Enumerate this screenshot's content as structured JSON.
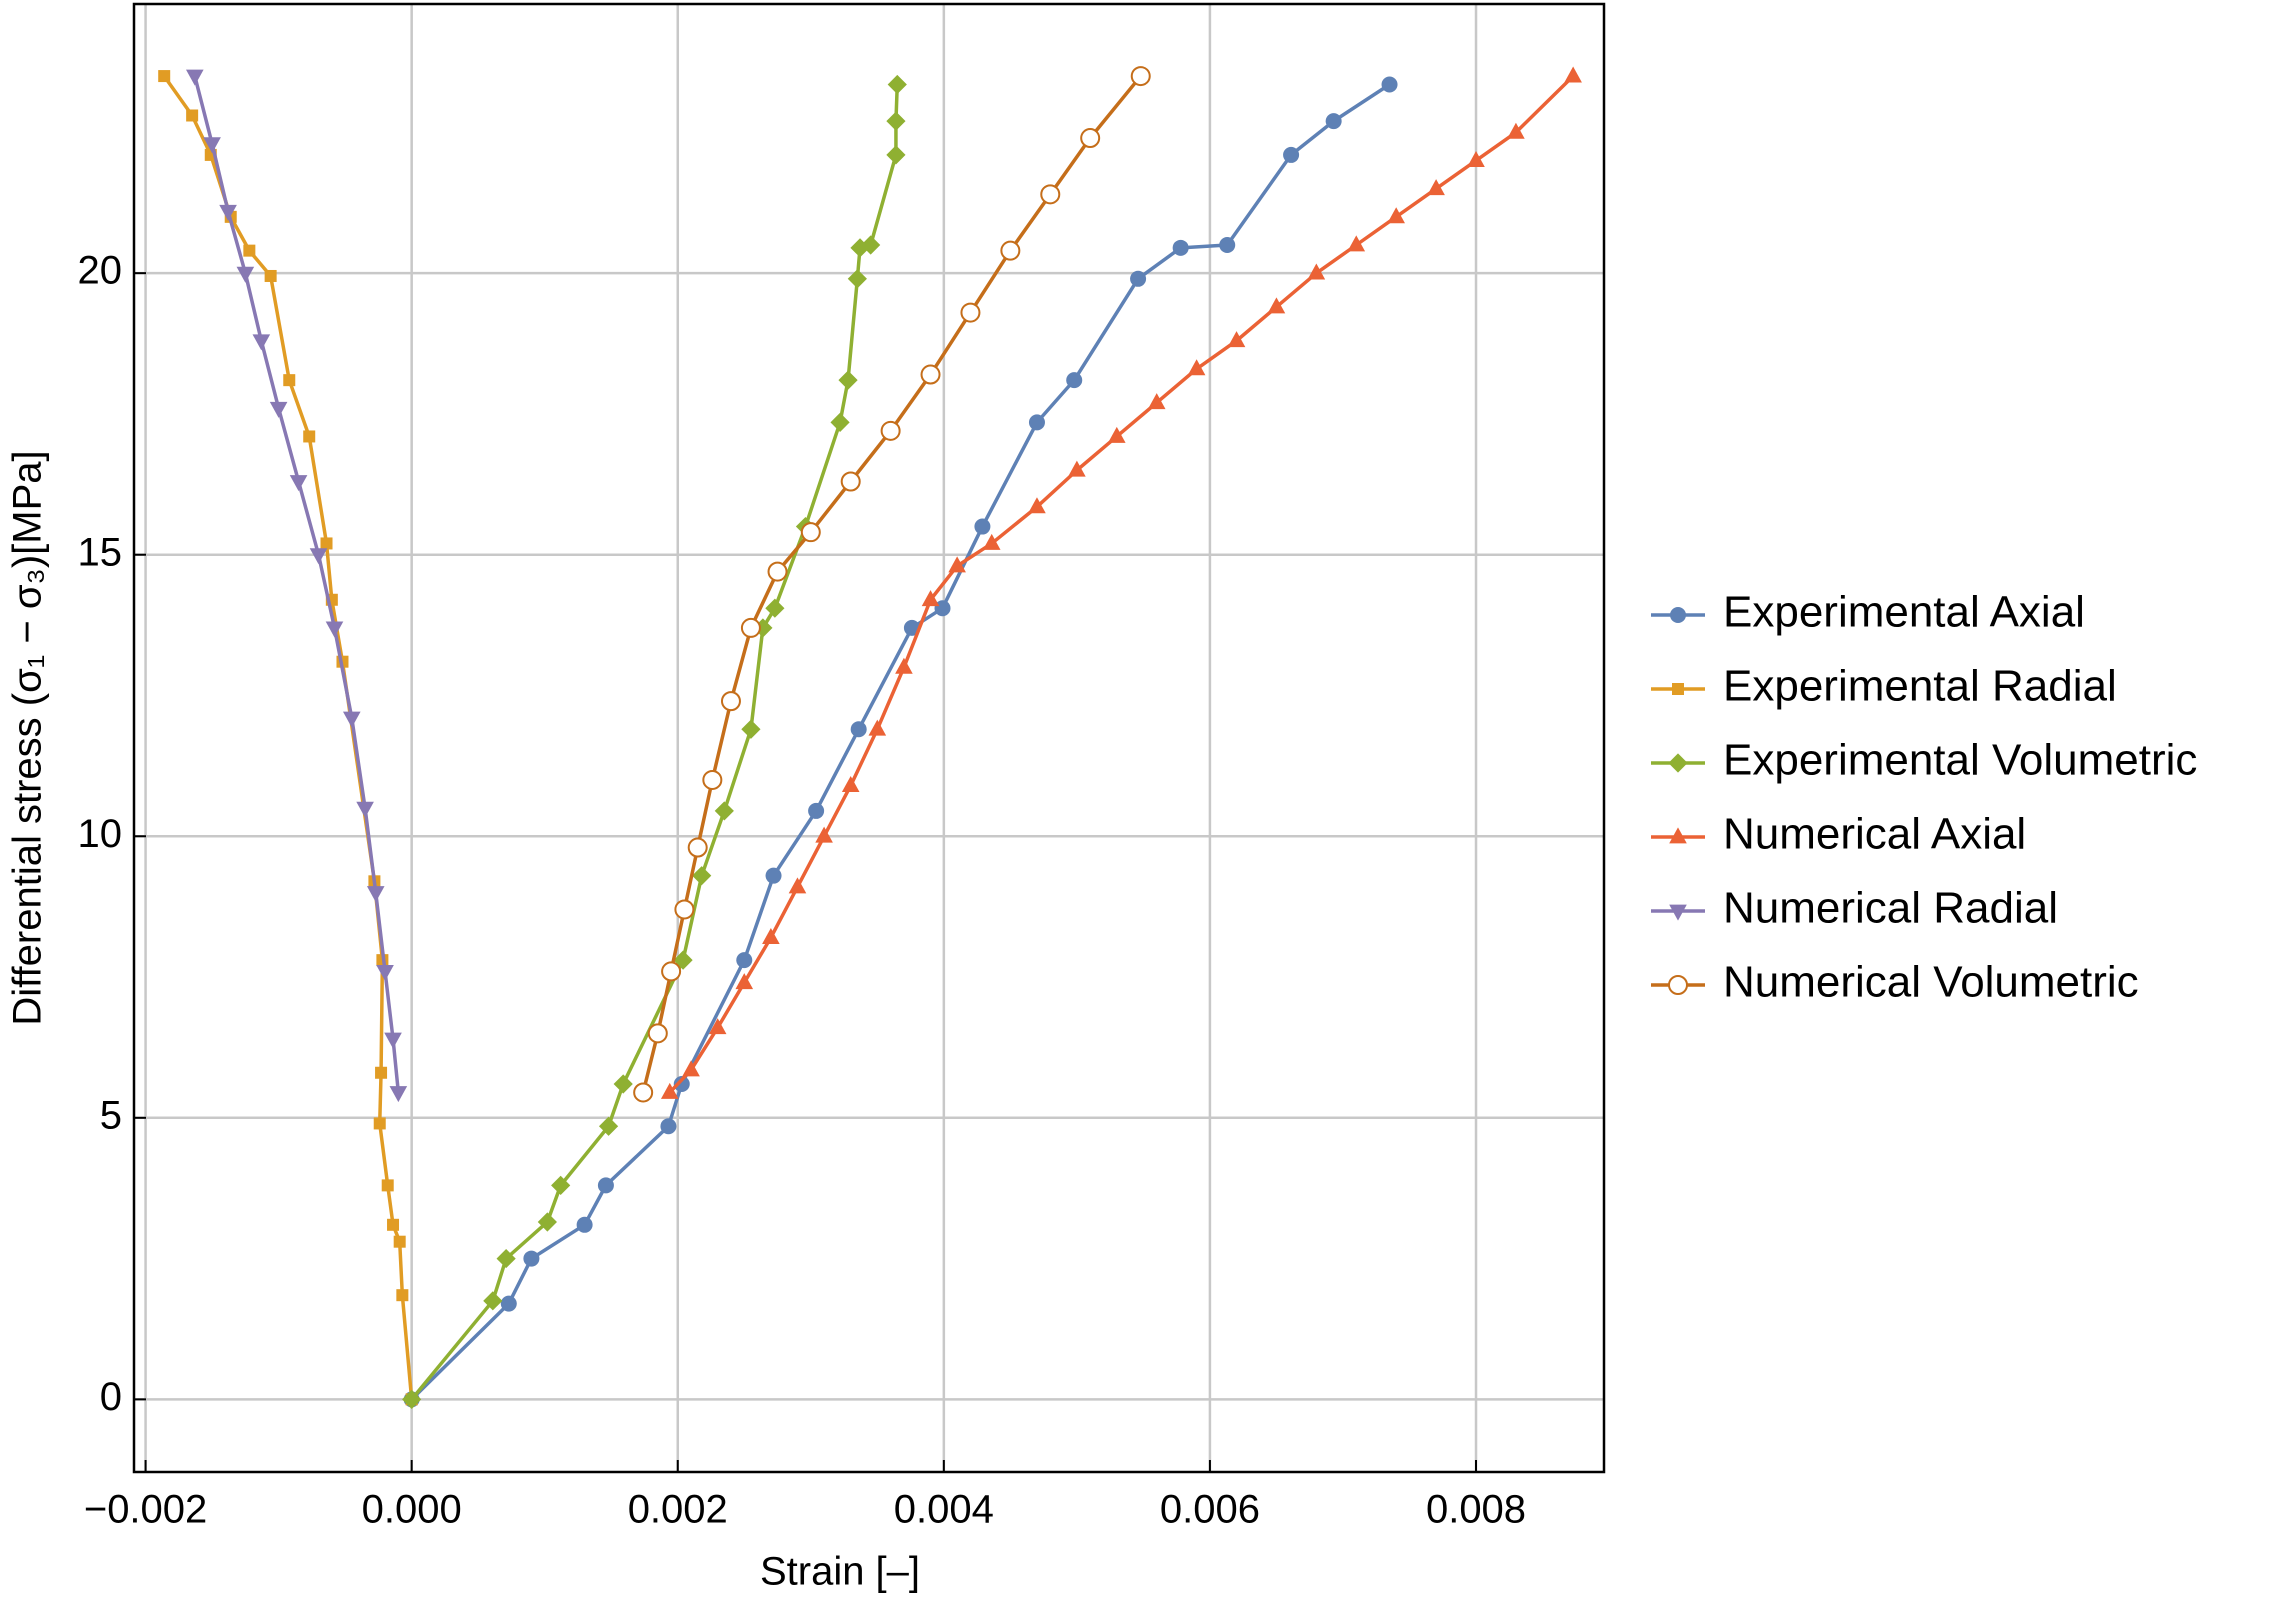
{
  "chart_data": {
    "type": "line",
    "x_label": "Strain [–]",
    "y_label": "Differential stress (σ₁ − σ₃)[MPa]",
    "xlim": [
      -0.002087,
      0.008962
    ],
    "ylim": [
      -1.29,
      24.78
    ],
    "xticks": [
      {
        "value": -0.002,
        "label": "−0.002"
      },
      {
        "value": 0,
        "label": "0.000"
      },
      {
        "value": 0.002,
        "label": "0.002"
      },
      {
        "value": 0.004,
        "label": "0.004"
      },
      {
        "value": 0.006,
        "label": "0.006"
      },
      {
        "value": 0.008,
        "label": "0.008"
      }
    ],
    "yticks": [
      0,
      5,
      10,
      15,
      20
    ],
    "grid": true,
    "legend": "right",
    "series": [
      {
        "name": "Experimental Axial",
        "color": "#5e81b5",
        "marker": "circle",
        "x": [
          0,
          0.00073,
          0.0009,
          0.0013,
          0.00146,
          0.00193,
          0.00203,
          0.0025,
          0.00272,
          0.00304,
          0.00336,
          0.00376,
          0.00399,
          0.00429,
          0.0047,
          0.00498,
          0.00546,
          0.00578,
          0.00613,
          0.00661,
          0.00693,
          0.00735
        ],
        "values": [
          0,
          1.7,
          2.5,
          3.1,
          3.8,
          4.85,
          5.6,
          7.8,
          9.3,
          10.45,
          11.9,
          13.7,
          14.05,
          15.5,
          17.35,
          18.1,
          19.9,
          20.45,
          20.5,
          22.1,
          22.7,
          23.35
        ]
      },
      {
        "name": "Experimental Radial",
        "color": "#e19c24",
        "marker": "square",
        "x": [
          -0.00186,
          -0.00165,
          -0.00151,
          -0.00136,
          -0.00122,
          -0.00106,
          -0.00092,
          -0.00077,
          -0.00064,
          -0.0006,
          -0.00052,
          -0.00028,
          -0.00022,
          -0.00023,
          -0.00024,
          -0.00018,
          -0.00014,
          -9e-05,
          -7e-05,
          0
        ],
        "values": [
          23.5,
          22.8,
          22.1,
          21,
          20.4,
          19.95,
          18.1,
          17.1,
          15.2,
          14.2,
          13.1,
          9.2,
          7.8,
          5.8,
          4.9,
          3.8,
          3.1,
          2.8,
          1.85,
          0
        ]
      },
      {
        "name": "Experimental Volumetric",
        "color": "#8fb032",
        "marker": "diamond",
        "x": [
          0,
          0.00061,
          0.00071,
          0.00102,
          0.00112,
          0.00148,
          0.00159,
          0.00204,
          0.00218,
          0.00235,
          0.00255,
          0.00264,
          0.00273,
          0.00296,
          0.00322,
          0.00328,
          0.00335,
          0.00337,
          0.00345,
          0.00364,
          0.00364,
          0.00365
        ],
        "values": [
          0,
          1.75,
          2.5,
          3.15,
          3.8,
          4.85,
          5.6,
          7.8,
          9.3,
          10.45,
          11.9,
          13.7,
          14.05,
          15.5,
          17.35,
          18.1,
          19.9,
          20.45,
          20.5,
          22.1,
          22.7,
          23.35
        ]
      },
      {
        "name": "Numerical Axial",
        "color": "#eb6235",
        "marker": "triangle-up",
        "x": [
          0.00194,
          0.0021,
          0.0023,
          0.0025,
          0.0027,
          0.0029,
          0.0031,
          0.0033,
          0.0035,
          0.0037,
          0.0039,
          0.0041,
          0.00436,
          0.0047,
          0.005,
          0.0053,
          0.0056,
          0.0059,
          0.0062,
          0.0065,
          0.0068,
          0.0071,
          0.0074,
          0.0077,
          0.008,
          0.0083,
          0.00873
        ],
        "values": [
          5.45,
          5.85,
          6.6,
          7.4,
          8.2,
          9.1,
          10,
          10.9,
          11.9,
          13,
          14.2,
          14.8,
          15.2,
          15.85,
          16.5,
          17.1,
          17.7,
          18.3,
          18.8,
          19.4,
          20,
          20.5,
          21,
          21.5,
          22,
          22.5,
          23.5
        ]
      },
      {
        "name": "Numerical Radial",
        "color": "#8778b3",
        "marker": "triangle-down",
        "x": [
          -0.00163,
          -0.0015,
          -0.00138,
          -0.00125,
          -0.00113,
          -0.001,
          -0.00085,
          -0.0007,
          -0.00058,
          -0.00045,
          -0.00035,
          -0.00027,
          -0.0002,
          -0.00014,
          -0.0001
        ],
        "values": [
          23.5,
          22.3,
          21.1,
          20,
          18.8,
          17.6,
          16.3,
          15,
          13.7,
          12.1,
          10.5,
          9,
          7.6,
          6.4,
          5.45
        ]
      },
      {
        "name": "Numerical Volumetric",
        "color": "#c56e1a",
        "marker": "open-circle",
        "x": [
          0.00174,
          0.00185,
          0.00195,
          0.00205,
          0.00215,
          0.00226,
          0.0024,
          0.00255,
          0.00275,
          0.003,
          0.0033,
          0.0036,
          0.0039,
          0.0042,
          0.0045,
          0.0048,
          0.0051,
          0.00548
        ],
        "values": [
          5.45,
          6.5,
          7.6,
          8.7,
          9.8,
          11,
          12.4,
          13.7,
          14.7,
          15.4,
          16.3,
          17.2,
          18.2,
          19.3,
          20.4,
          21.4,
          22.4,
          23.5
        ]
      }
    ]
  }
}
